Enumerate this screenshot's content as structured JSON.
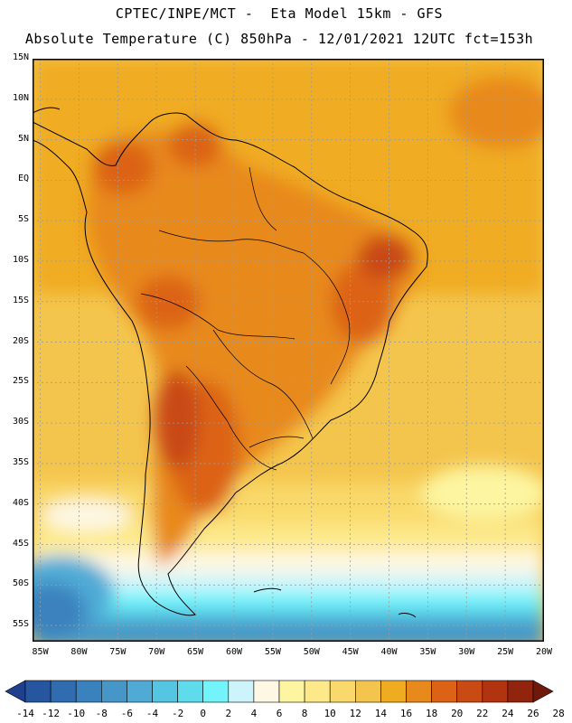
{
  "header": {
    "line1": "CPTEC/INPE/MCT -  Eta Model 15km - GFS",
    "line2": "Absolute Temperature (C) 850hPa - 12/01/2021 12UTC fct=153h"
  },
  "map": {
    "lat_labels": [
      "15N",
      "10N",
      "5N",
      "EQ",
      "5S",
      "10S",
      "15S",
      "20S",
      "25S",
      "30S",
      "35S",
      "40S",
      "45S",
      "50S",
      "55S"
    ],
    "lon_labels": [
      "85W",
      "80W",
      "75W",
      "70W",
      "65W",
      "60W",
      "55W",
      "50W",
      "45W",
      "40W",
      "35W",
      "30W",
      "25W",
      "20W"
    ],
    "lat_range": [
      15,
      -57
    ],
    "lon_range": [
      -86,
      -20
    ]
  },
  "colorbar": {
    "labels": [
      "-14",
      "-12",
      "-10",
      "-8",
      "-6",
      "-4",
      "-2",
      "0",
      "2",
      "4",
      "6",
      "8",
      "10",
      "12",
      "14",
      "16",
      "18",
      "20",
      "22",
      "24",
      "26",
      "28"
    ],
    "colors": [
      "#1f3f8f",
      "#2656a0",
      "#2f6cb0",
      "#3a82be",
      "#4697c8",
      "#4fabd6",
      "#54c6e2",
      "#5edcec",
      "#72f4fa",
      "#cdf4fb",
      "#fdf7e3",
      "#fdf5a0",
      "#fde98a",
      "#f9d96b",
      "#f4c54d",
      "#f0ac21",
      "#e8891b",
      "#dc6315",
      "#c94a12",
      "#b13310",
      "#92240e",
      "#6f190b"
    ]
  }
}
